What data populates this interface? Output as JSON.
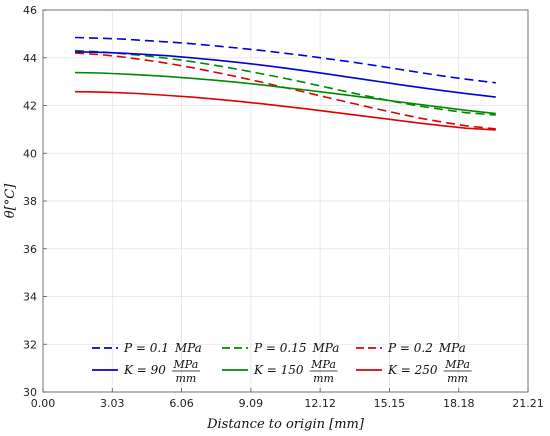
{
  "chart_data": {
    "type": "line",
    "title": "",
    "xlabel": "Distance to origin [mm]",
    "ylabel": "θ[°C]",
    "xlim": [
      0,
      21.21
    ],
    "ylim": [
      30,
      46
    ],
    "x_ticks": [
      "0.00",
      "3.03",
      "6.06",
      "9.09",
      "12.12",
      "15.15",
      "18.18",
      "21.21"
    ],
    "y_ticks": [
      "30",
      "32",
      "34",
      "36",
      "38",
      "40",
      "42",
      "44",
      "46"
    ],
    "grid": true,
    "legend_placement": "bottom-center",
    "series": [
      {
        "name": "P = 0.1 MPa",
        "legend_main": "P = 0.1",
        "legend_unit": "MPa",
        "legend_unit_den": "",
        "color": "#0000dd",
        "dash": "dashed",
        "x": [
          1.4,
          2.5,
          3.5,
          4.5,
          5.5,
          6.5,
          7.5,
          8.5,
          9.5,
          10.5,
          11.5,
          12.5,
          13.5,
          14.5,
          15.5,
          16.5,
          17.5,
          18.5,
          19.8
        ],
        "y": [
          44.85,
          44.82,
          44.78,
          44.72,
          44.66,
          44.59,
          44.5,
          44.41,
          44.31,
          44.2,
          44.08,
          43.95,
          43.82,
          43.68,
          43.53,
          43.38,
          43.23,
          43.1,
          42.95
        ]
      },
      {
        "name": "P = 0.15 MPa",
        "legend_main": "P = 0.15",
        "legend_unit": "MPa",
        "legend_unit_den": "",
        "color": "#008800",
        "dash": "dashed",
        "x": [
          1.4,
          2.5,
          3.5,
          4.5,
          5.5,
          6.5,
          7.5,
          8.5,
          9.5,
          10.5,
          11.5,
          12.5,
          13.5,
          14.5,
          15.5,
          16.5,
          17.5,
          18.5,
          19.8
        ],
        "y": [
          44.3,
          44.25,
          44.17,
          44.08,
          43.97,
          43.84,
          43.69,
          43.52,
          43.34,
          43.15,
          42.95,
          42.74,
          42.53,
          42.33,
          42.14,
          41.97,
          41.83,
          41.7,
          41.6
        ]
      },
      {
        "name": "P = 0.2 MPa",
        "legend_main": "P = 0.2",
        "legend_unit": "MPa",
        "legend_unit_den": "",
        "color": "#dd0000",
        "dash": "dashed",
        "x": [
          1.4,
          2.5,
          3.5,
          4.5,
          5.5,
          6.5,
          7.5,
          8.5,
          9.5,
          10.5,
          11.5,
          12.5,
          13.5,
          14.5,
          15.5,
          16.5,
          17.5,
          18.5,
          19.8
        ],
        "y": [
          44.2,
          44.13,
          44.03,
          43.9,
          43.76,
          43.59,
          43.4,
          43.2,
          42.99,
          42.77,
          42.55,
          42.32,
          42.1,
          41.88,
          41.67,
          41.47,
          41.3,
          41.15,
          41.02
        ]
      },
      {
        "name": "K = 90 MPa/mm",
        "legend_main": "K = 90",
        "legend_unit": "MPa",
        "legend_unit_den": "mm",
        "color": "#0000dd",
        "dash": "solid",
        "x": [
          1.4,
          2.5,
          3.5,
          4.5,
          5.5,
          6.5,
          7.5,
          8.5,
          9.5,
          10.5,
          11.5,
          12.5,
          13.5,
          14.5,
          15.5,
          16.5,
          17.5,
          18.5,
          19.8
        ],
        "y": [
          44.25,
          44.23,
          44.19,
          44.14,
          44.08,
          44.0,
          43.91,
          43.81,
          43.7,
          43.58,
          43.45,
          43.31,
          43.17,
          43.03,
          42.89,
          42.75,
          42.62,
          42.5,
          42.35
        ]
      },
      {
        "name": "K = 150 MPa/mm",
        "legend_main": "K = 150",
        "legend_unit": "MPa",
        "legend_unit_den": "mm",
        "color": "#008800",
        "dash": "solid",
        "x": [
          1.4,
          2.5,
          3.5,
          4.5,
          5.5,
          6.5,
          7.5,
          8.5,
          9.5,
          10.5,
          11.5,
          12.5,
          13.5,
          14.5,
          15.5,
          16.5,
          17.5,
          18.5,
          19.8
        ],
        "y": [
          43.38,
          43.36,
          43.32,
          43.27,
          43.21,
          43.14,
          43.06,
          42.97,
          42.87,
          42.76,
          42.65,
          42.53,
          42.41,
          42.29,
          42.16,
          42.04,
          41.92,
          41.8,
          41.66
        ]
      },
      {
        "name": "K = 250 MPa/mm",
        "legend_main": "K = 250",
        "legend_unit": "MPa",
        "legend_unit_den": "mm",
        "color": "#dd0000",
        "dash": "solid",
        "x": [
          1.4,
          2.5,
          3.5,
          4.5,
          5.5,
          6.5,
          7.5,
          8.5,
          9.5,
          10.5,
          11.5,
          12.5,
          13.5,
          14.5,
          15.5,
          16.5,
          17.5,
          18.5,
          19.8
        ],
        "y": [
          42.58,
          42.56,
          42.53,
          42.48,
          42.42,
          42.35,
          42.27,
          42.18,
          42.08,
          41.97,
          41.86,
          41.74,
          41.62,
          41.5,
          41.38,
          41.26,
          41.15,
          41.05,
          40.98
        ]
      }
    ]
  }
}
